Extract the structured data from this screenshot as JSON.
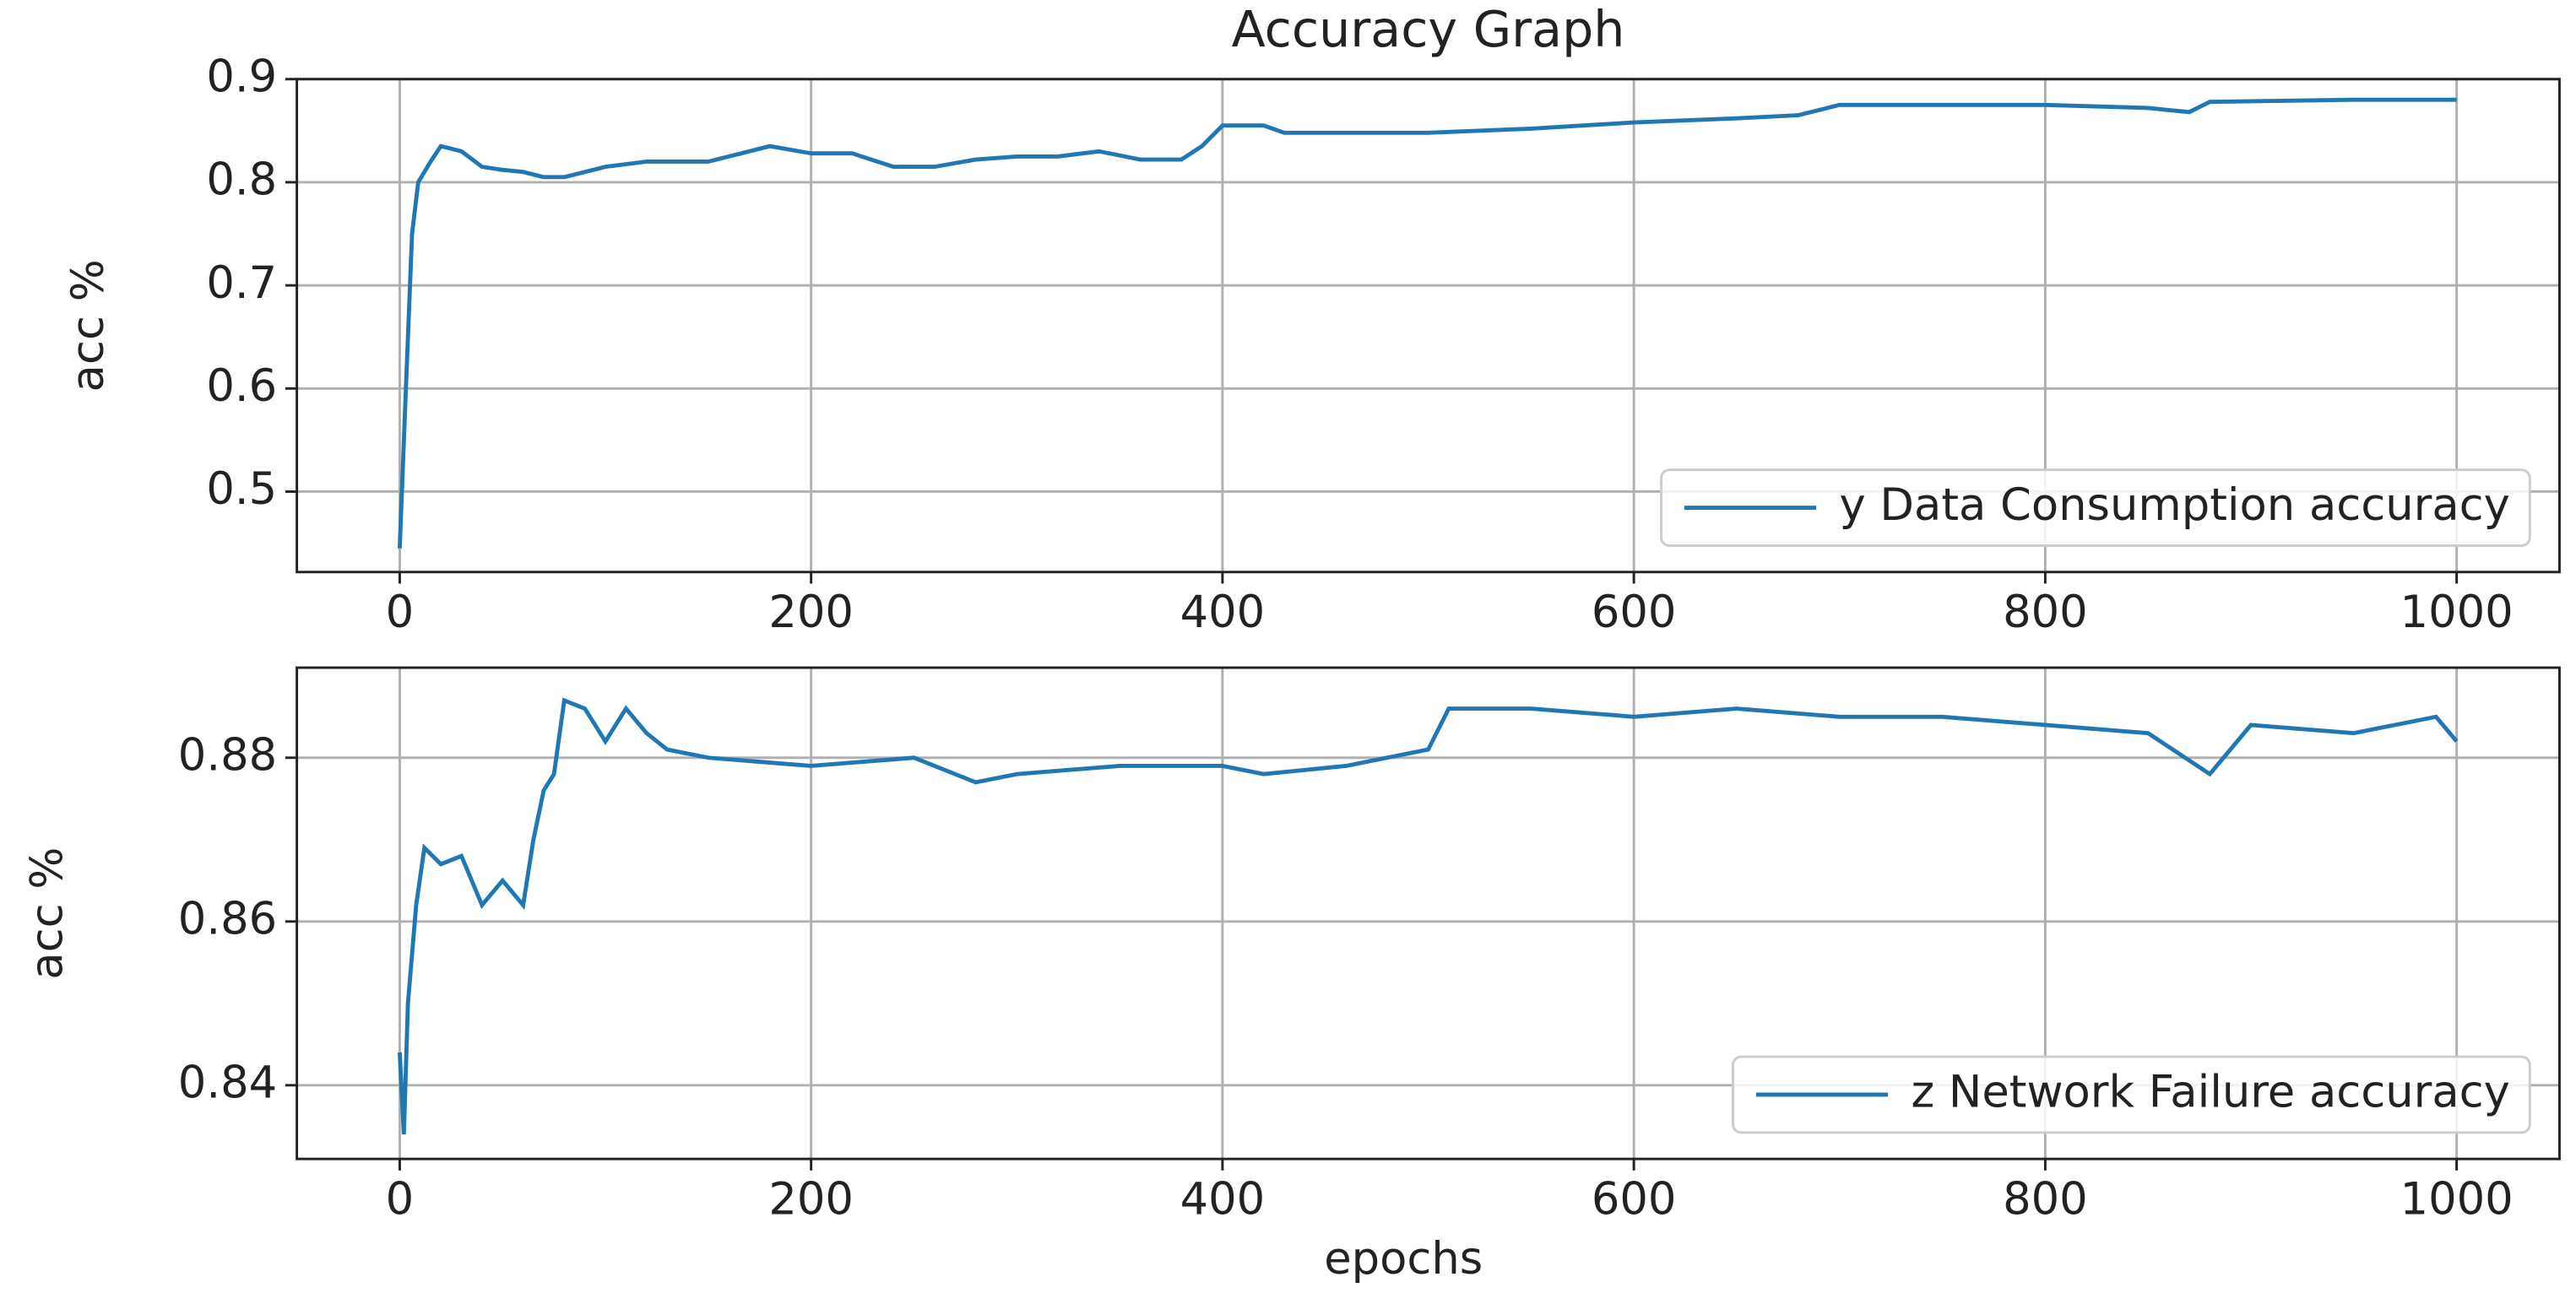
{
  "chart_data": [
    {
      "type": "line",
      "title": "Accuracy Graph",
      "ylabel": "acc %",
      "x": [
        0,
        3,
        6,
        9,
        15,
        20,
        30,
        40,
        50,
        60,
        70,
        80,
        90,
        100,
        120,
        150,
        180,
        200,
        220,
        240,
        260,
        280,
        300,
        320,
        340,
        360,
        380,
        390,
        400,
        420,
        430,
        500,
        550,
        600,
        650,
        680,
        700,
        800,
        850,
        870,
        880,
        950,
        1000
      ],
      "series": [
        {
          "name": "y Data Consumption accuracy",
          "color": "#1f77b4",
          "values": [
            0.445,
            0.6,
            0.75,
            0.8,
            0.82,
            0.835,
            0.83,
            0.815,
            0.812,
            0.81,
            0.805,
            0.805,
            0.81,
            0.815,
            0.82,
            0.82,
            0.835,
            0.828,
            0.828,
            0.815,
            0.815,
            0.822,
            0.825,
            0.825,
            0.83,
            0.822,
            0.822,
            0.835,
            0.855,
            0.855,
            0.848,
            0.848,
            0.852,
            0.858,
            0.862,
            0.865,
            0.875,
            0.875,
            0.872,
            0.868,
            0.878,
            0.88,
            0.88
          ]
        }
      ],
      "xlim": [
        -50,
        1050
      ],
      "xticks": [
        0,
        200,
        400,
        600,
        800,
        1000
      ],
      "ylim": [
        0.422,
        0.9
      ],
      "yticks": [
        0.5,
        0.6,
        0.7,
        0.8,
        0.9
      ],
      "grid": true,
      "legend": "lower right"
    },
    {
      "type": "line",
      "xlabel": "epochs",
      "ylabel": "acc %",
      "x": [
        0,
        2,
        4,
        8,
        12,
        20,
        30,
        40,
        50,
        60,
        65,
        70,
        75,
        80,
        90,
        100,
        110,
        120,
        130,
        150,
        200,
        250,
        280,
        300,
        350,
        400,
        420,
        460,
        480,
        500,
        510,
        550,
        600,
        650,
        700,
        750,
        800,
        850,
        880,
        900,
        950,
        990,
        1000
      ],
      "series": [
        {
          "name": "z Network Failure accuracy",
          "color": "#1f77b4",
          "values": [
            0.844,
            0.834,
            0.85,
            0.862,
            0.869,
            0.867,
            0.868,
            0.862,
            0.865,
            0.862,
            0.87,
            0.876,
            0.878,
            0.887,
            0.886,
            0.882,
            0.886,
            0.883,
            0.881,
            0.88,
            0.879,
            0.88,
            0.877,
            0.878,
            0.879,
            0.879,
            0.878,
            0.879,
            0.88,
            0.881,
            0.886,
            0.886,
            0.885,
            0.886,
            0.885,
            0.885,
            0.884,
            0.883,
            0.878,
            0.884,
            0.883,
            0.885,
            0.882
          ]
        }
      ],
      "xlim": [
        -50,
        1050
      ],
      "xticks": [
        0,
        200,
        400,
        600,
        800,
        1000
      ],
      "ylim": [
        0.831,
        0.891
      ],
      "yticks": [
        0.84,
        0.86,
        0.88
      ],
      "grid": true,
      "legend": "lower right"
    }
  ]
}
